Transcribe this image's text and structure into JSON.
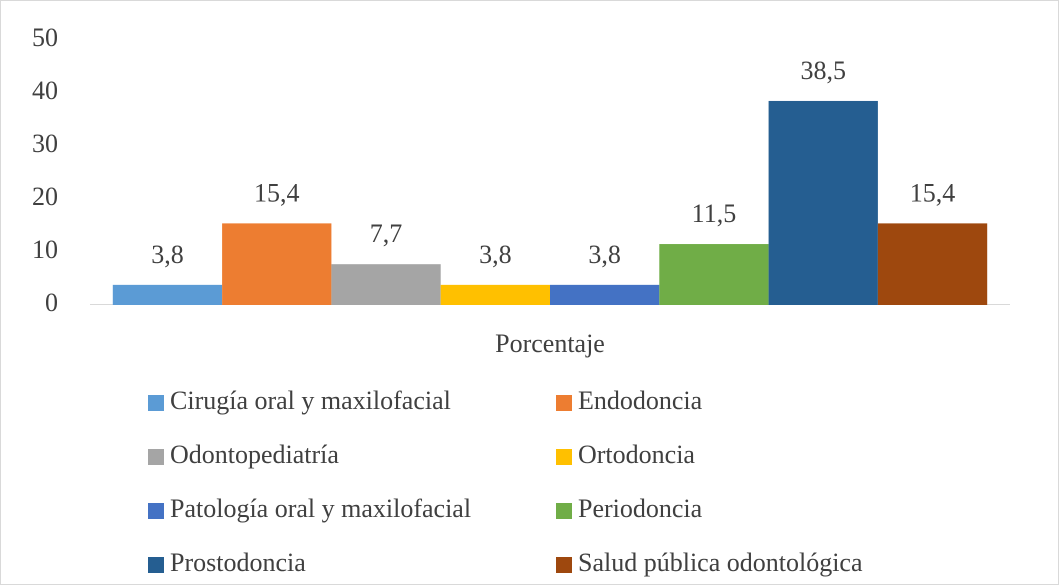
{
  "chart_data": {
    "type": "bar",
    "categories": [
      "Porcentaje"
    ],
    "series": [
      {
        "name": "Cirugía oral y maxilofacial",
        "color": "#5b9bd5",
        "values": [
          3.8
        ],
        "value_labels": [
          "3,8"
        ]
      },
      {
        "name": "Endodoncia",
        "color": "#ed7d31",
        "values": [
          15.4
        ],
        "value_labels": [
          "15,4"
        ]
      },
      {
        "name": "Odontopediatría",
        "color": "#a5a5a5",
        "values": [
          7.7
        ],
        "value_labels": [
          "7,7"
        ]
      },
      {
        "name": "Ortodoncia",
        "color": "#ffc000",
        "values": [
          3.8
        ],
        "value_labels": [
          "3,8"
        ]
      },
      {
        "name": "Patología oral y maxilofacial",
        "color": "#4472c4",
        "values": [
          3.8
        ],
        "value_labels": [
          "3,8"
        ]
      },
      {
        "name": "Periodoncia",
        "color": "#70ad47",
        "values": [
          11.5
        ],
        "value_labels": [
          "11,5"
        ]
      },
      {
        "name": "Prostodoncia",
        "color": "#255e91",
        "values": [
          38.5
        ],
        "value_labels": [
          "38,5"
        ]
      },
      {
        "name": "Salud pública odontológica",
        "color": "#9e480e",
        "values": [
          15.4
        ],
        "value_labels": [
          "15,4"
        ]
      }
    ],
    "ylim": [
      0,
      50
    ],
    "yticks": [
      0,
      10,
      20,
      30,
      40,
      50
    ],
    "grid": false,
    "legend": "bottom"
  }
}
